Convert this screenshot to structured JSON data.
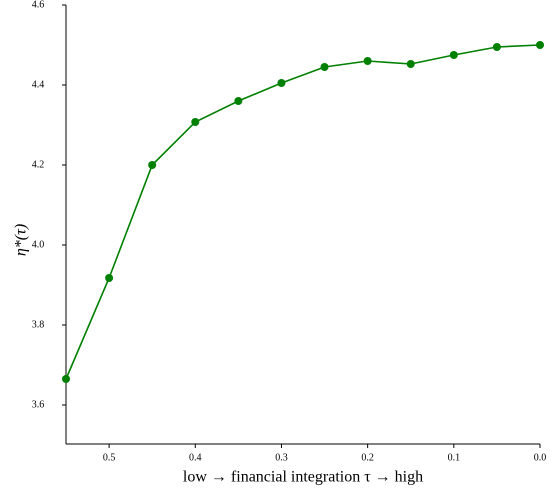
{
  "chart_data": {
    "type": "line",
    "x_label": "low    →    financial integration τ    →    high",
    "y_label": "η*(τ)",
    "x": [
      0.55,
      0.5,
      0.45,
      0.4,
      0.35,
      0.3,
      0.25,
      0.2,
      0.15,
      0.1,
      0.05,
      0.0
    ],
    "series": [
      {
        "name": "η*(τ)",
        "color": "#008000",
        "values": [
          3.665,
          3.9175,
          4.2,
          4.3075,
          4.36,
          4.405,
          4.445,
          4.46,
          4.4525,
          4.475,
          4.495,
          4.5
        ]
      }
    ],
    "xlim": [
      0.55,
      0.0
    ],
    "xticks": [
      0.5,
      0.4,
      0.3,
      0.2,
      0.1,
      {
        "value": 0,
        "label": "0.0"
      }
    ],
    "ylim": [
      3.5025,
      4.6
    ],
    "yticks": [
      3.6,
      3.8,
      {
        "value": 4,
        "label": "4.0"
      },
      4.2,
      4.4,
      4.6
    ],
    "grid": false
  }
}
